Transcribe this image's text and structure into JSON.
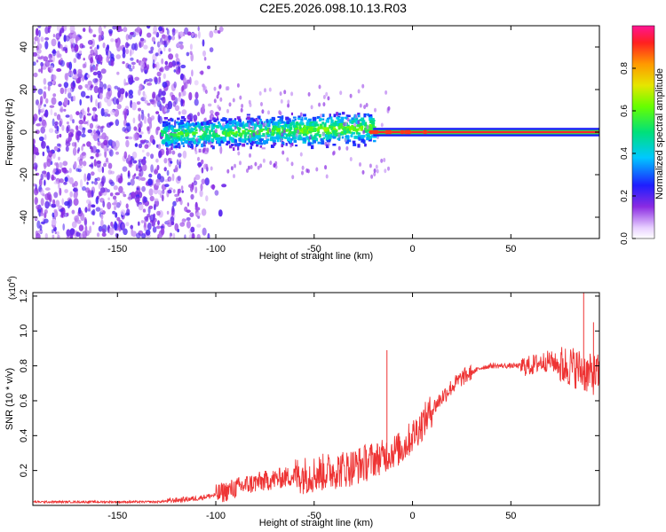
{
  "title": "C2E5.2026.098.10.13.R03",
  "chart_data": [
    {
      "type": "heatmap",
      "name": "spectrogram",
      "xlabel": "Height of straight line (km)",
      "ylabel": "Frequency (Hz)",
      "xlim": [
        -193,
        95
      ],
      "ylim": [
        -50,
        50
      ],
      "xticks": [
        -150,
        -100,
        -50,
        0,
        50
      ],
      "yticks": [
        -40,
        -20,
        0,
        20,
        40
      ],
      "colorbar": {
        "label": "Normalized spectral amplitude",
        "range": [
          0,
          1
        ],
        "ticks": [
          0.0,
          0.2,
          0.4,
          0.6,
          0.8
        ],
        "tick_labels": [
          "0.0",
          "0.2",
          "0.4",
          "0.6",
          "0.8"
        ]
      },
      "features": [
        {
          "region": "scattered noise (low amplitude 0.1-0.3)",
          "x_range": [
            -193,
            -105
          ],
          "freq_range": [
            -50,
            50
          ]
        },
        {
          "region": "broad signal band (amplitude 0.1-0.6)",
          "x_range": [
            -128,
            -20
          ],
          "freq_range": [
            -12,
            10
          ]
        },
        {
          "region": "narrow carrier line (amplitude ~0.9-1.0)",
          "x_range": [
            -20,
            95
          ],
          "freq_center": 0,
          "freq_halfwidth": 2
        }
      ]
    },
    {
      "type": "line",
      "name": "snr",
      "xlabel": "Height of straight line (km)",
      "ylabel": "SNR (10 * v/v)",
      "multiplier_label": "(x10",
      "multiplier_exp": "4",
      "multiplier_close": ")",
      "xlim": [
        -193,
        95
      ],
      "ylim": [
        0,
        1.22
      ],
      "xticks": [
        -150,
        -100,
        -50,
        0,
        50
      ],
      "yticks": [
        0.2,
        0.4,
        0.6,
        0.8,
        1.0,
        1.2
      ],
      "ytick_labels": [
        "0.2",
        "0.4",
        "0.6",
        "0.8",
        "1.0",
        "1.2"
      ],
      "color": "#ee3333",
      "x": [
        -193,
        -160,
        -130,
        -120,
        -110,
        -100,
        -90,
        -80,
        -70,
        -60,
        -50,
        -40,
        -30,
        -25,
        -20,
        -15,
        -10,
        -5,
        0,
        5,
        10,
        15,
        20,
        25,
        30,
        35,
        40,
        45,
        50,
        55,
        60,
        65,
        70,
        75,
        80,
        85,
        90,
        95
      ],
      "values": [
        0.02,
        0.02,
        0.02,
        0.03,
        0.04,
        0.06,
        0.1,
        0.13,
        0.15,
        0.17,
        0.18,
        0.2,
        0.22,
        0.24,
        0.26,
        0.28,
        0.31,
        0.33,
        0.4,
        0.47,
        0.55,
        0.62,
        0.68,
        0.73,
        0.76,
        0.79,
        0.8,
        0.8,
        0.8,
        0.8,
        0.8,
        0.82,
        0.83,
        0.8,
        0.8,
        0.78,
        0.75,
        0.75
      ],
      "spike_annotations": [
        {
          "x": -13,
          "y": 0.89
        },
        {
          "x": 87,
          "y": 1.22
        },
        {
          "x": 92,
          "y": 1.05
        }
      ]
    }
  ]
}
